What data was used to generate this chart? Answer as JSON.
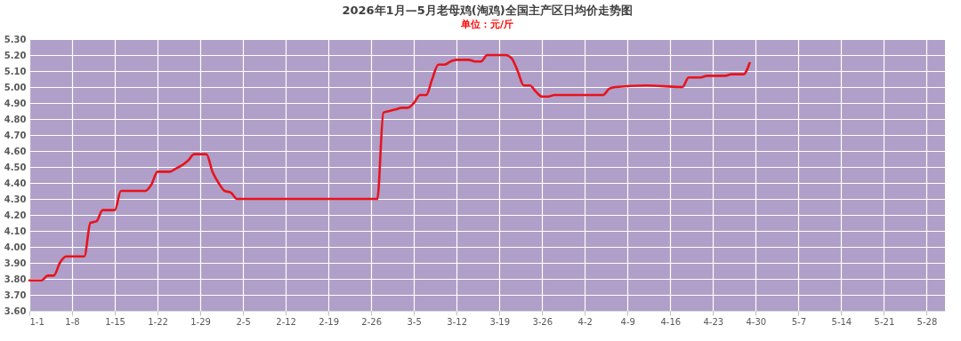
{
  "chart_data": {
    "type": "line",
    "title": "2026年1月—5月老母鸡(淘鸡)全国主产区日均价走势图",
    "subtitle": "单位：元/斤",
    "x": [
      "2026-01-01",
      "2026-01-03",
      "2026-01-04",
      "2026-01-05",
      "2026-01-06",
      "2026-01-07",
      "2026-01-10",
      "2026-01-11",
      "2026-01-12",
      "2026-01-13",
      "2026-01-15",
      "2026-01-16",
      "2026-01-20",
      "2026-01-21",
      "2026-01-22",
      "2026-01-24",
      "2026-01-25",
      "2026-01-26",
      "2026-01-27",
      "2026-01-28",
      "2026-01-30",
      "2026-01-31",
      "2026-02-01",
      "2026-02-02",
      "2026-02-03",
      "2026-02-04",
      "2026-02-27",
      "2026-02-28",
      "2026-03-01",
      "2026-03-02",
      "2026-03-03",
      "2026-03-04",
      "2026-03-05",
      "2026-03-06",
      "2026-03-07",
      "2026-03-08",
      "2026-03-09",
      "2026-03-10",
      "2026-03-11",
      "2026-03-12",
      "2026-03-14",
      "2026-03-15",
      "2026-03-16",
      "2026-03-17",
      "2026-03-20",
      "2026-03-21",
      "2026-03-22",
      "2026-03-23",
      "2026-03-24",
      "2026-03-25",
      "2026-03-26",
      "2026-03-27",
      "2026-03-28",
      "2026-04-05",
      "2026-04-06",
      "2026-04-07",
      "2026-04-12",
      "2026-04-18",
      "2026-04-19",
      "2026-04-21",
      "2026-04-22",
      "2026-04-25",
      "2026-04-26",
      "2026-04-28",
      "2026-04-29"
    ],
    "series": [
      {
        "color": "#e8131b",
        "values": [
          3.79,
          3.79,
          3.82,
          3.82,
          3.9,
          3.94,
          3.94,
          4.15,
          4.16,
          4.23,
          4.23,
          4.35,
          4.35,
          4.39,
          4.47,
          4.47,
          4.49,
          4.51,
          4.54,
          4.58,
          4.58,
          4.47,
          4.4,
          4.35,
          4.34,
          4.3,
          4.3,
          4.84,
          4.85,
          4.86,
          4.87,
          4.87,
          4.9,
          4.95,
          4.95,
          5.05,
          5.14,
          5.14,
          5.16,
          5.17,
          5.17,
          5.16,
          5.16,
          5.2,
          5.2,
          5.18,
          5.1,
          5.01,
          5.01,
          4.97,
          4.94,
          4.94,
          4.95,
          4.95,
          4.99,
          5.0,
          5.01,
          5.0,
          5.06,
          5.06,
          5.07,
          5.07,
          5.08,
          5.08,
          5.15
        ]
      }
    ],
    "xlim": [
      "2026-01-01",
      "2026-05-31"
    ],
    "xticks": [
      {
        "value": "2026-01-01",
        "label": "1-1"
      },
      {
        "value": "2026-01-08",
        "label": "1-8"
      },
      {
        "value": "2026-01-15",
        "label": "1-15"
      },
      {
        "value": "2026-01-22",
        "label": "1-22"
      },
      {
        "value": "2026-01-29",
        "label": "1-29"
      },
      {
        "value": "2026-02-05",
        "label": "2-5"
      },
      {
        "value": "2026-02-12",
        "label": "2-12"
      },
      {
        "value": "2026-02-19",
        "label": "2-19"
      },
      {
        "value": "2026-02-26",
        "label": "2-26"
      },
      {
        "value": "2026-03-05",
        "label": "3-5"
      },
      {
        "value": "2026-03-12",
        "label": "3-12"
      },
      {
        "value": "2026-03-19",
        "label": "3-19"
      },
      {
        "value": "2026-03-26",
        "label": "3-26"
      },
      {
        "value": "2026-04-02",
        "label": "4-2"
      },
      {
        "value": "2026-04-09",
        "label": "4-9"
      },
      {
        "value": "2026-04-16",
        "label": "4-16"
      },
      {
        "value": "2026-04-23",
        "label": "4-23"
      },
      {
        "value": "2026-04-30",
        "label": "4-30"
      },
      {
        "value": "2026-05-07",
        "label": "5-7"
      },
      {
        "value": "2026-05-14",
        "label": "5-14"
      },
      {
        "value": "2026-05-21",
        "label": "5-21"
      },
      {
        "value": "2026-05-28",
        "label": "5-28"
      }
    ],
    "ylim": [
      3.6,
      5.3
    ],
    "yticks": [
      {
        "value": 3.6,
        "label": "3.60"
      },
      {
        "value": 3.7,
        "label": "3.70"
      },
      {
        "value": 3.8,
        "label": "3.80"
      },
      {
        "value": 3.9,
        "label": "3.90"
      },
      {
        "value": 4.0,
        "label": "4.00"
      },
      {
        "value": 4.1,
        "label": "4.10"
      },
      {
        "value": 4.2,
        "label": "4.20"
      },
      {
        "value": 4.3,
        "label": "4.30"
      },
      {
        "value": 4.4,
        "label": "4.40"
      },
      {
        "value": 4.5,
        "label": "4.50"
      },
      {
        "value": 4.6,
        "label": "4.60"
      },
      {
        "value": 4.7,
        "label": "4.70"
      },
      {
        "value": 4.8,
        "label": "4.80"
      },
      {
        "value": 4.9,
        "label": "4.90"
      },
      {
        "value": 5.0,
        "label": "5.00"
      },
      {
        "value": 5.1,
        "label": "5.10"
      },
      {
        "value": 5.2,
        "label": "5.20"
      },
      {
        "value": 5.3,
        "label": "5.30"
      }
    ],
    "grid": true,
    "marker": "none",
    "line_style": "solid"
  }
}
